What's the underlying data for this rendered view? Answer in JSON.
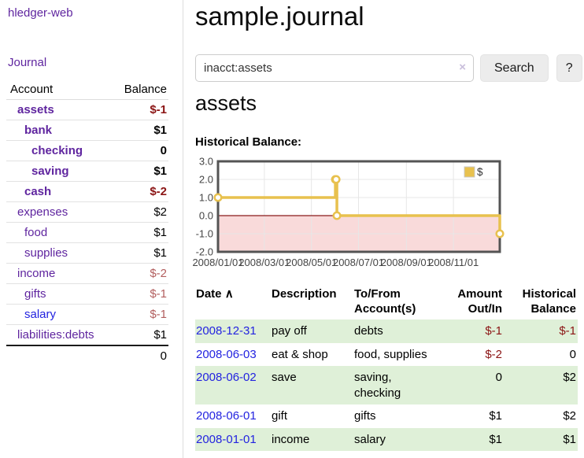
{
  "app": {
    "brand": "hledger-web",
    "nav_journal": "Journal"
  },
  "colors": {
    "accent_purple": "#5f259f",
    "link_blue": "#2323e0",
    "negative_strong": "#8b1414",
    "negative_soft": "#b25e5e",
    "row_stripe_green": "#dff0d8",
    "series_gold": "#e8c14e"
  },
  "sidebar": {
    "table": {
      "headers": [
        "Account",
        "Balance"
      ],
      "rows": [
        {
          "account": "assets",
          "balance": "$-1",
          "indent": 1,
          "highlight": true,
          "balance_tone": "neg-strong",
          "link_tone": "purple"
        },
        {
          "account": "bank",
          "balance": "$1",
          "indent": 2,
          "highlight": true,
          "balance_tone": "pos",
          "link_tone": "purple"
        },
        {
          "account": "checking",
          "balance": "0",
          "indent": 3,
          "highlight": true,
          "balance_tone": "pos",
          "link_tone": "purple"
        },
        {
          "account": "saving",
          "balance": "$1",
          "indent": 3,
          "highlight": true,
          "balance_tone": "pos",
          "link_tone": "purple"
        },
        {
          "account": "cash",
          "balance": "$-2",
          "indent": 2,
          "highlight": true,
          "balance_tone": "neg-strong",
          "link_tone": "purple"
        },
        {
          "account": "expenses",
          "balance": "$2",
          "indent": 1,
          "highlight": false,
          "balance_tone": "pos",
          "link_tone": "purple"
        },
        {
          "account": "food",
          "balance": "$1",
          "indent": 2,
          "highlight": false,
          "balance_tone": "pos",
          "link_tone": "purple"
        },
        {
          "account": "supplies",
          "balance": "$1",
          "indent": 2,
          "highlight": false,
          "balance_tone": "pos",
          "link_tone": "purple"
        },
        {
          "account": "income",
          "balance": "$-2",
          "indent": 1,
          "highlight": false,
          "balance_tone": "neg-soft",
          "link_tone": "purple"
        },
        {
          "account": "gifts",
          "balance": "$-1",
          "indent": 2,
          "highlight": false,
          "balance_tone": "neg-soft",
          "link_tone": "purple"
        },
        {
          "account": "salary",
          "balance": "$-1",
          "indent": 2,
          "highlight": false,
          "balance_tone": "neg-soft",
          "link_tone": "blue"
        },
        {
          "account": "liabilities:debts",
          "balance": "$1",
          "indent": 1,
          "highlight": false,
          "balance_tone": "pos",
          "link_tone": "purple"
        }
      ],
      "total": "0"
    }
  },
  "header": {
    "title": "sample.journal"
  },
  "search": {
    "value": "inacct:assets",
    "clear_icon": "×",
    "button_label": "Search",
    "help_label": "?"
  },
  "account_page": {
    "heading": "assets",
    "chart_label": "Historical Balance:"
  },
  "chart_data": {
    "type": "line",
    "style": "step",
    "title": "Historical Balance",
    "series": [
      {
        "name": "$",
        "color": "#e8c14e",
        "points": [
          [
            "2008-01-01",
            1
          ],
          [
            "2008-06-01",
            2
          ],
          [
            "2008-06-02",
            2
          ],
          [
            "2008-06-03",
            0
          ],
          [
            "2008-12-31",
            -1
          ]
        ]
      }
    ],
    "xrange": [
      "2008-01-01",
      "2008-12-31"
    ],
    "ylim": [
      -2,
      3
    ],
    "y_ticks": [
      3,
      2,
      1,
      0,
      -1,
      -2
    ],
    "y_tick_labels": [
      "3.0",
      "2.0",
      "1.0",
      "0.0",
      "-1.0",
      "-2.0"
    ],
    "x_ticks": [
      "2008-01-01",
      "2008-03-01",
      "2008-05-01",
      "2008-07-01",
      "2008-09-01",
      "2008-11-01"
    ],
    "x_tick_labels": [
      "2008/01/01",
      "2008/03/01",
      "2008/05/01",
      "2008/07/01",
      "2008/09/01",
      "2008/11/01"
    ],
    "legend": {
      "position": "top-right",
      "label": "$"
    },
    "grid": true,
    "grid_color": "#e7e7e7",
    "border_color": "#545454",
    "axis_label_color": "#444444",
    "negative_region_color": "#f9dada",
    "zero_line_color": "#8b1a1a"
  },
  "register": {
    "sort_icon": "∧",
    "columns": [
      "Date",
      "Description",
      "To/From Account(s)",
      "Amount Out/In",
      "Historical Balance"
    ],
    "rows": [
      {
        "date": "2008-12-31",
        "description": "pay off",
        "accounts": "debts",
        "amount": "$-1",
        "amount_tone": "neg",
        "balance": "$-1",
        "balance_tone": "neg"
      },
      {
        "date": "2008-06-03",
        "description": "eat & shop",
        "accounts": "food, supplies",
        "amount": "$-2",
        "amount_tone": "neg",
        "balance": "0",
        "balance_tone": "pos"
      },
      {
        "date": "2008-06-02",
        "description": "save",
        "accounts": "saving, checking",
        "amount": "0",
        "amount_tone": "pos",
        "balance": "$2",
        "balance_tone": "pos"
      },
      {
        "date": "2008-06-01",
        "description": "gift",
        "accounts": "gifts",
        "amount": "$1",
        "amount_tone": "pos",
        "balance": "$2",
        "balance_tone": "pos"
      },
      {
        "date": "2008-01-01",
        "description": "income",
        "accounts": "salary",
        "amount": "$1",
        "amount_tone": "pos",
        "balance": "$1",
        "balance_tone": "pos"
      }
    ]
  }
}
